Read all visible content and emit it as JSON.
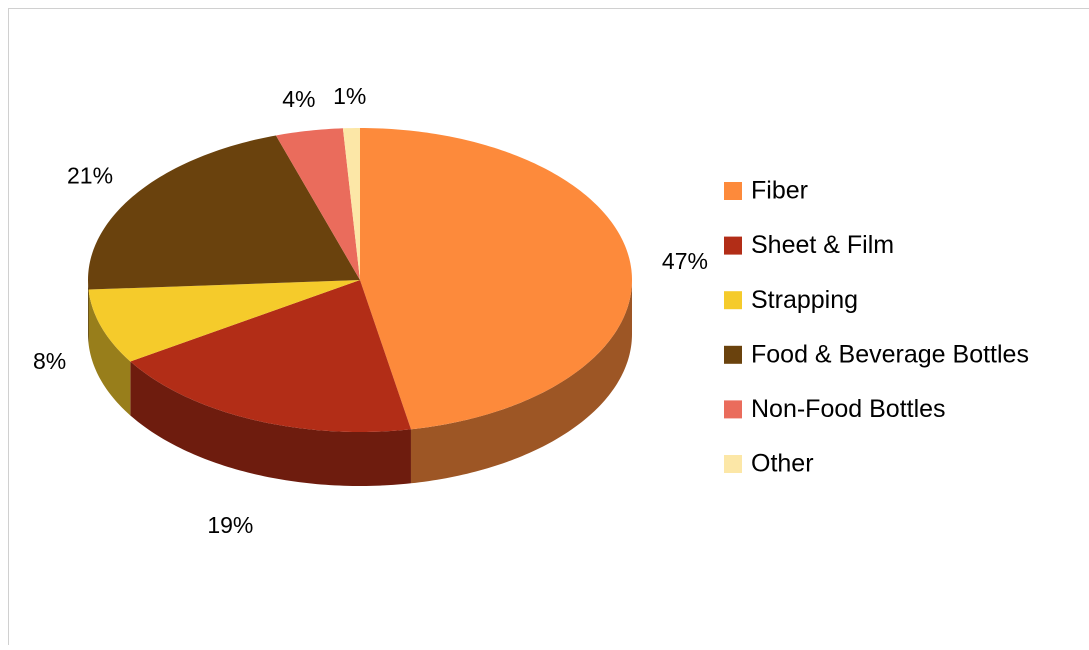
{
  "chart_data": {
    "type": "pie",
    "categories": [
      "Fiber",
      "Sheet & Film",
      "Strapping",
      "Food & Beverage Bottles",
      "Non-Food Bottles",
      "Other"
    ],
    "values": [
      47,
      19,
      8,
      21,
      4,
      1
    ],
    "value_labels": [
      "47%",
      "19%",
      "8%",
      "21%",
      "4%",
      "1%"
    ],
    "colors": [
      "#fd8a3b",
      "#b22d17",
      "#f5cb2b",
      "#6a420d",
      "#ea6c5c",
      "#fce7a7"
    ],
    "legend": "right"
  }
}
